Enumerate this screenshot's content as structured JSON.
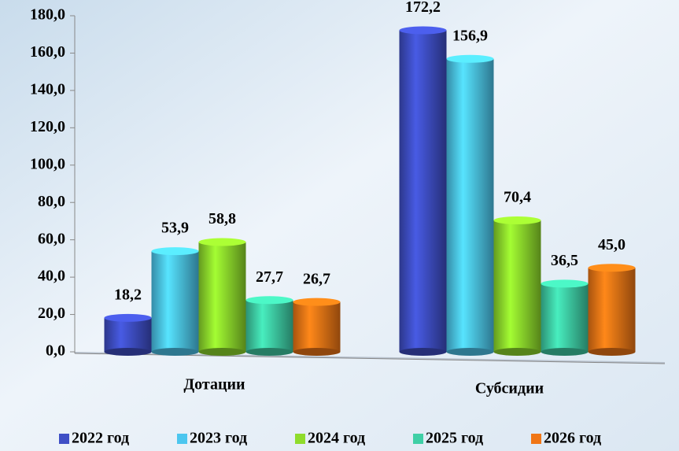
{
  "chart_data": {
    "type": "bar",
    "categories": [
      "Дотации",
      "Субсидии"
    ],
    "series": [
      {
        "name": "2022 год",
        "color": "#3f4fc6",
        "values": [
          18.2,
          172.2
        ],
        "value_labels": [
          "18,2",
          "172,2"
        ]
      },
      {
        "name": "2023 год",
        "color": "#4cc6ef",
        "values": [
          53.9,
          156.9
        ],
        "value_labels": [
          "53,9",
          "156,9"
        ]
      },
      {
        "name": "2024 год",
        "color": "#8fdc2c",
        "values": [
          58.8,
          70.4
        ],
        "value_labels": [
          "58,8",
          "70,4"
        ]
      },
      {
        "name": "2025 год",
        "color": "#3fcfa6",
        "values": [
          27.7,
          36.5
        ],
        "value_labels": [
          "27,7",
          "36,5"
        ]
      },
      {
        "name": "2026 год",
        "color": "#f07616",
        "values": [
          26.7,
          45.0
        ],
        "value_labels": [
          "26,7",
          "45,0"
        ]
      }
    ],
    "ylim": [
      0,
      180
    ],
    "yticks": [
      {
        "value": 0,
        "label": "0,0"
      },
      {
        "value": 20,
        "label": "20,0"
      },
      {
        "value": 40,
        "label": "40,0"
      },
      {
        "value": 60,
        "label": "60,0"
      },
      {
        "value": 80,
        "label": "80,0"
      },
      {
        "value": 100,
        "label": "100,0"
      },
      {
        "value": 120,
        "label": "120,0"
      },
      {
        "value": 140,
        "label": "140,0"
      },
      {
        "value": 160,
        "label": "160,0"
      },
      {
        "value": 180,
        "label": "180,0"
      }
    ],
    "legend": "bottom"
  }
}
